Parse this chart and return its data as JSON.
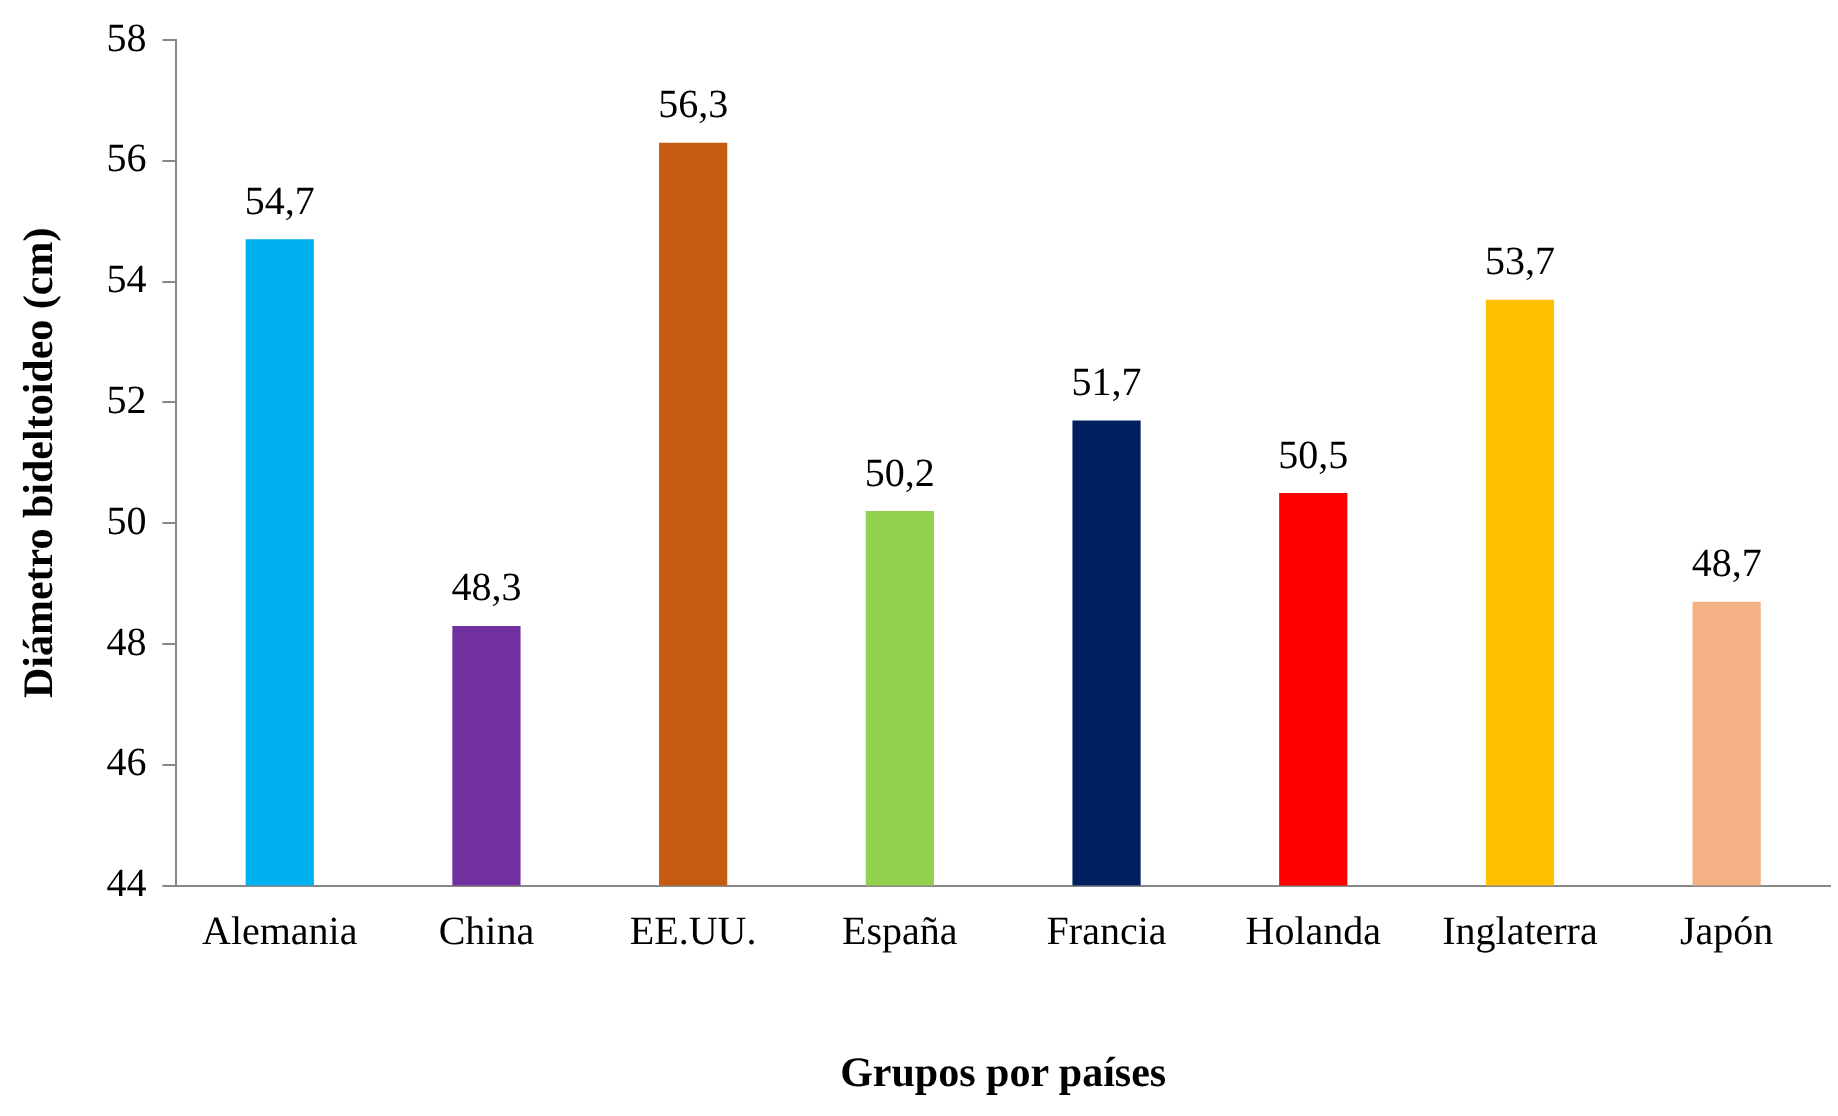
{
  "chart_data": {
    "type": "bar",
    "xlabel": "Grupos por países",
    "ylabel": "Diámetro bideltoideo (cm)",
    "categories": [
      "Alemania",
      "China",
      "EE.UU.",
      "España",
      "Francia",
      "Holanda",
      "Inglaterra",
      "Japón"
    ],
    "values": [
      54.7,
      48.3,
      56.3,
      50.2,
      51.7,
      50.5,
      53.7,
      48.7
    ],
    "colors": [
      "#00b0f0",
      "#7030a0",
      "#c55a11",
      "#92d050",
      "#002060",
      "#ff0000",
      "#ffc000",
      "#f4b183"
    ],
    "value_labels": [
      "54,7",
      "48,3",
      "56,3",
      "50,2",
      "51,7",
      "50,5",
      "53,7",
      "48,7"
    ],
    "ylim": [
      44,
      58
    ],
    "yticks": [
      44,
      46,
      48,
      50,
      52,
      54,
      56,
      58
    ],
    "grid": false,
    "legend": false
  }
}
